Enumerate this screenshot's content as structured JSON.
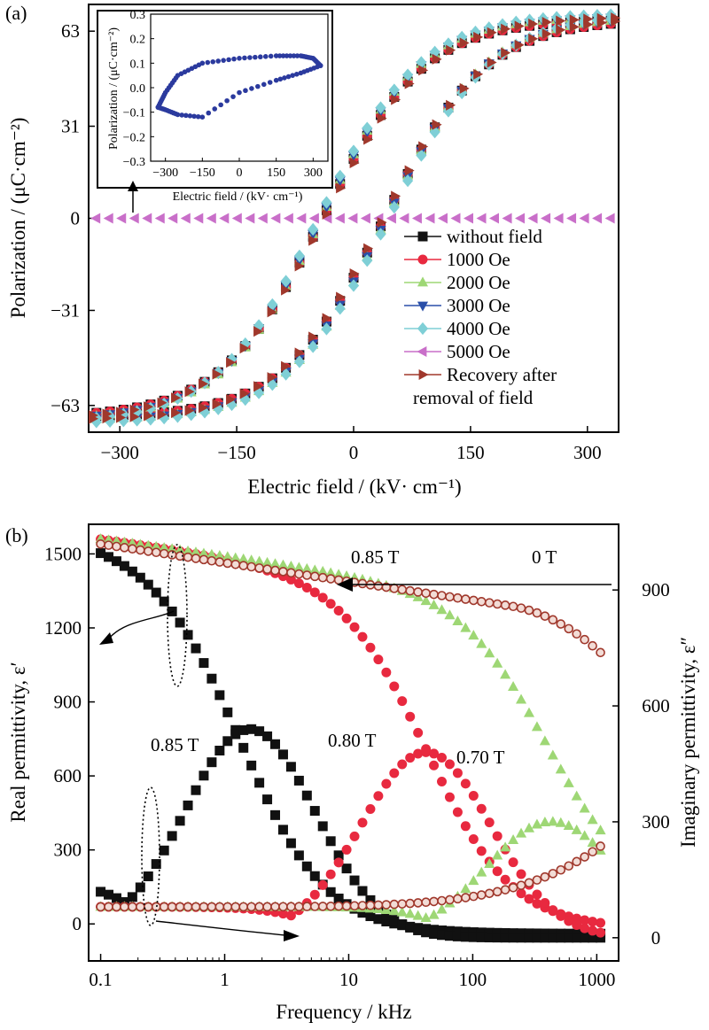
{
  "chart_data": [
    {
      "panel": "(a)",
      "type": "line",
      "xlabel": "Electric field / (kV· cm⁻¹)",
      "ylabel": "Polarization / (μC·cm⁻²)",
      "xlim": [
        -340,
        340
      ],
      "ylim": [
        -72,
        72
      ],
      "xticks": [
        -300,
        -150,
        0,
        150,
        300
      ],
      "yticks": [
        -63,
        -31,
        0,
        31,
        63
      ],
      "xticklabels": [
        "−300",
        "−150",
        "0",
        "150",
        "300"
      ],
      "yticklabels": [
        "−63",
        "−31",
        "0",
        "31",
        "63"
      ],
      "legend_position": "lower-right",
      "legend": [
        "without field",
        "1000 Oe",
        "2000 Oe",
        "3000 Oe",
        "4000 Oe",
        "5000 Oe",
        "Recovery after",
        "removal of field"
      ],
      "series": [
        {
          "name": "without field",
          "color": "#111111",
          "marker": "square",
          "Ps": 67,
          "Ec": 40,
          "scale": 130,
          "Emax": 330
        },
        {
          "name": "1000 Oe",
          "color": "#e8293f",
          "marker": "circle",
          "Ps": 67,
          "Ec": 40,
          "scale": 130,
          "Emax": 330
        },
        {
          "name": "2000 Oe",
          "color": "#9ed775",
          "marker": "triangle-up",
          "Ps": 68,
          "Ec": 42,
          "scale": 128,
          "Emax": 330
        },
        {
          "name": "3000 Oe",
          "color": "#2a4fa8",
          "marker": "triangle-down",
          "Ps": 68,
          "Ec": 42,
          "scale": 130,
          "Emax": 330
        },
        {
          "name": "4000 Oe",
          "color": "#7fcfd6",
          "marker": "diamond",
          "Ps": 69,
          "Ec": 45,
          "scale": 132,
          "Emax": 330
        },
        {
          "name": "5000 Oe",
          "color": "#c96fc9",
          "marker": "triangle-left",
          "constant": 0,
          "x": [
            -330,
            330
          ]
        },
        {
          "name": "Recovery after removal of field",
          "color": "#a0382c",
          "marker": "triangle-right",
          "Ps": 68,
          "Ec": 38,
          "scale": 135,
          "Emax": 335
        }
      ],
      "inset": {
        "type": "scatter",
        "xlabel": "Electric field / (kV· cm⁻¹)",
        "ylabel": "Polarization / (μC·cm⁻²)",
        "xlim": [
          -360,
          360
        ],
        "ylim": [
          -0.3,
          0.3
        ],
        "xticks": [
          -300,
          -150,
          0,
          150,
          300
        ],
        "yticks": [
          -0.3,
          -0.2,
          -0.1,
          0.0,
          0.1,
          0.2,
          0.3
        ],
        "xticklabels": [
          "−300",
          "−150",
          "0",
          "150",
          "300"
        ],
        "yticklabels": [
          "−0.3",
          "−0.2",
          "−0.1",
          "0.0",
          "0.1",
          "0.2",
          "0.3"
        ],
        "color": "#2b3a9e",
        "loop_center": [
          -10,
          0.0
        ],
        "loop_radii": [
          330,
          0.13
        ],
        "upper_points": [
          [
            -330,
            -0.08
          ],
          [
            -300,
            -0.02
          ],
          [
            -250,
            0.05
          ],
          [
            -150,
            0.1
          ],
          [
            0,
            0.12
          ],
          [
            150,
            0.13
          ],
          [
            250,
            0.13
          ],
          [
            300,
            0.12
          ],
          [
            330,
            0.09
          ]
        ],
        "lower_points": [
          [
            330,
            0.09
          ],
          [
            250,
            0.06
          ],
          [
            150,
            0.03
          ],
          [
            0,
            -0.02
          ],
          [
            -150,
            -0.12
          ],
          [
            -250,
            -0.11
          ],
          [
            -300,
            -0.09
          ],
          [
            -330,
            -0.08
          ]
        ]
      }
    },
    {
      "panel": "(b)",
      "type": "scatter",
      "xlabel": "Frequency / kHz",
      "ylabel": "Real permittivity, ε′",
      "y2label": "Imaginary permittivity, ε″",
      "xscale": "log",
      "xlim": [
        0.08,
        1500
      ],
      "ylim": [
        -150,
        1620
      ],
      "y2lim": [
        -60,
        1070
      ],
      "xticks": [
        0.1,
        1,
        10,
        100,
        1000
      ],
      "xticklabels": [
        "0.1",
        "1",
        "10",
        "100",
        "1000"
      ],
      "yticks": [
        0,
        300,
        600,
        900,
        1200,
        1500
      ],
      "yticklabels": [
        "0",
        "300",
        "600",
        "900",
        "1200",
        "1500"
      ],
      "y2ticks": [
        0,
        300,
        600,
        900
      ],
      "y2ticklabels": [
        "0",
        "300",
        "600",
        "900"
      ],
      "annotations": [
        "0.85 T",
        "0 T",
        "0.85 T",
        "0.80 T",
        "0.70 T"
      ],
      "series": [
        {
          "name": "0.85 T real",
          "color": "#111111",
          "marker": "square",
          "axis": "left",
          "relax_f": 1.4,
          "eps_s": 1560,
          "eps_inf": -40
        },
        {
          "name": "0.80 T real",
          "color": "#e8293f",
          "marker": "circle",
          "axis": "left",
          "relax_f": 45,
          "eps_s": 1570,
          "eps_inf": -20
        },
        {
          "name": "0.70 T real",
          "color": "#9ed775",
          "marker": "triangle-up",
          "axis": "left",
          "relax_f": 420,
          "eps_s": 1570,
          "eps_inf": 100
        },
        {
          "name": "0 T real",
          "color": "#a0382c",
          "marker": "circle-open",
          "axis": "left",
          "log_slope": 380,
          "eps_0": 1540,
          "tail": 130
        },
        {
          "name": "0.85 T imag",
          "color": "#111111",
          "marker": "square",
          "axis": "right",
          "peak_f": 1.6,
          "peak": 540,
          "base": 145,
          "floor": -30
        },
        {
          "name": "0.80 T imag",
          "color": "#e8293f",
          "marker": "circle",
          "axis": "right",
          "peak_f": 42,
          "peak": 480,
          "base": 80,
          "floor": -5
        },
        {
          "name": "0.70 T imag",
          "color": "#9ed775",
          "marker": "triangle-up",
          "axis": "right",
          "peak_f": 430,
          "peak": 300,
          "base": 80,
          "floor": 200
        },
        {
          "name": "0 T imag",
          "color": "#a0382c",
          "marker": "circle-open",
          "axis": "right",
          "base": 80,
          "end": 230
        }
      ]
    }
  ]
}
